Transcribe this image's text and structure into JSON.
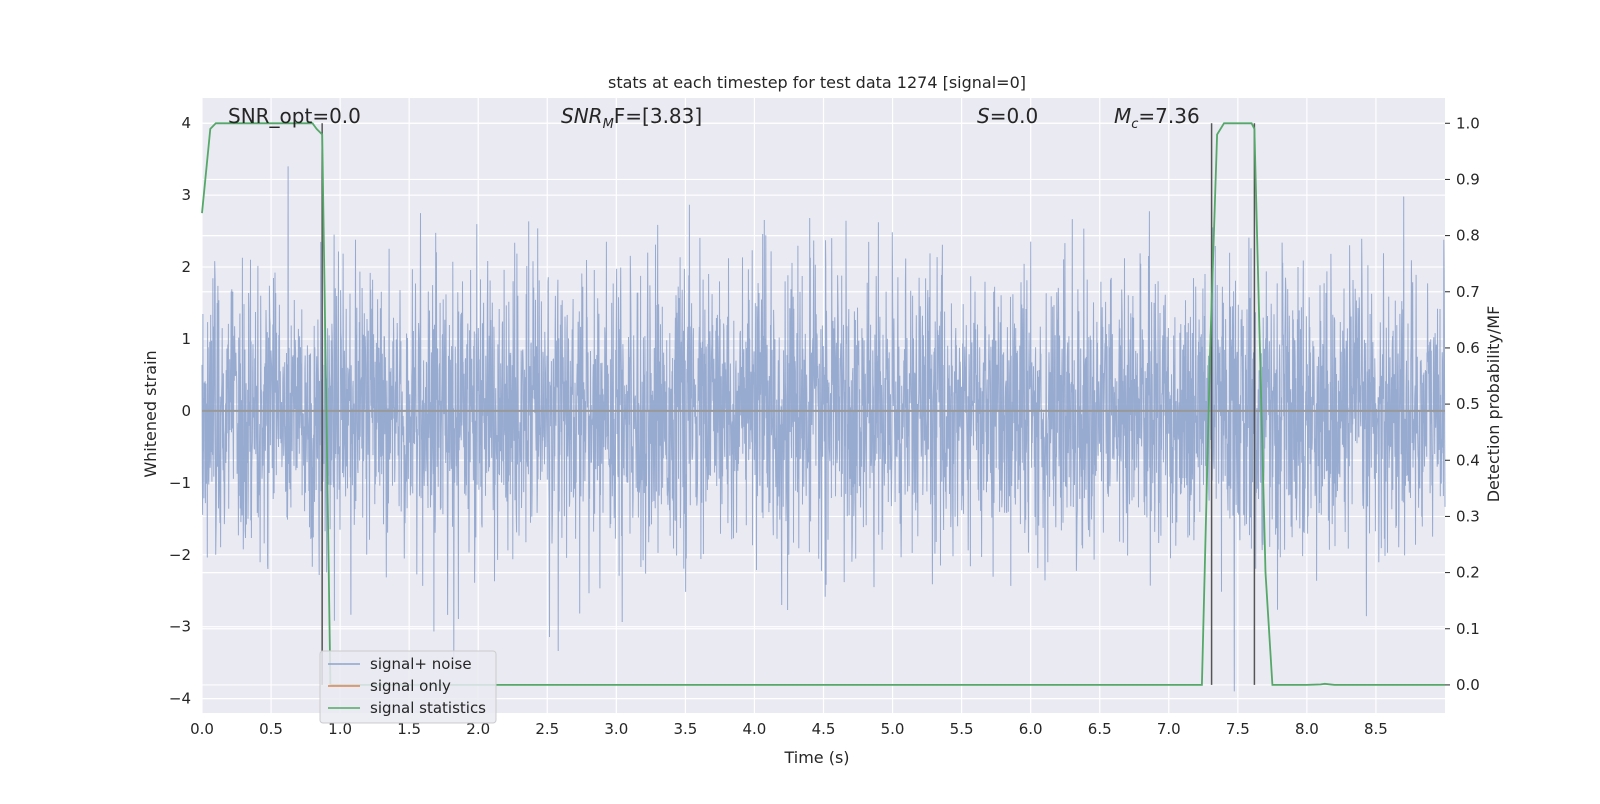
{
  "chart_data": {
    "type": "line",
    "title": "stats at each timestep for test data 1274 [signal=0]",
    "xlabel": "Time (s)",
    "ylabel": "Whitened strain",
    "ylabel_right": "Detection probability/MF",
    "xlim": [
      0.0,
      9.0
    ],
    "ylim": [
      -4.2,
      4.35
    ],
    "ylim_right": [
      -0.05,
      1.045
    ],
    "x_ticks": [
      "0.0",
      "0.5",
      "1.0",
      "1.5",
      "2.0",
      "2.5",
      "3.0",
      "3.5",
      "4.0",
      "4.5",
      "5.0",
      "5.5",
      "6.0",
      "6.5",
      "7.0",
      "7.5",
      "8.0",
      "8.5"
    ],
    "y_ticks": [
      "4",
      "3",
      "2",
      "1",
      "0",
      "−1",
      "−2",
      "−3",
      "−4"
    ],
    "y_right_ticks": [
      "1.0",
      "0.9",
      "0.8",
      "0.7",
      "0.6",
      "0.5",
      "0.4",
      "0.3",
      "0.2",
      "0.1",
      "0.0"
    ],
    "grid": true,
    "legend_position": "lower-left",
    "annotations": {
      "snr_opt": "SNR_opt=0.0",
      "snr_mf_main": "SNR",
      "snr_mf_sub": "M",
      "snr_mf_rest": "F=[3.83]",
      "s_main": "S",
      "s_rest": "=0.0",
      "mc_main": "M",
      "mc_sub": "c",
      "mc_rest": "=7.36"
    },
    "vertical_lines_x": [
      0.87,
      7.31,
      7.62
    ],
    "series": [
      {
        "name": "signal+ noise",
        "color": "#8ea3cc",
        "axis": "left",
        "description_values": {
          "mean": 0.0,
          "typical_abs_max": 2.6,
          "max": 4.0,
          "min": -3.9
        }
      },
      {
        "name": "signal only",
        "color": "#dd8452",
        "axis": "left",
        "x": [
          0.0,
          9.0
        ],
        "y": [
          0.0,
          0.0
        ]
      },
      {
        "name": "signal statistics",
        "color": "#55a868",
        "axis": "right",
        "x": [
          0.0,
          0.06,
          0.1,
          0.2,
          0.3,
          0.4,
          0.5,
          0.6,
          0.7,
          0.8,
          0.83,
          0.87,
          0.9,
          0.93,
          1.0,
          2.0,
          3.0,
          4.0,
          5.0,
          6.0,
          7.0,
          7.24,
          7.3,
          7.35,
          7.4,
          7.5,
          7.6,
          7.62,
          7.66,
          7.7,
          7.75,
          8.0,
          8.1,
          8.13,
          8.2,
          8.5,
          9.0
        ],
        "y": [
          0.84,
          0.99,
          1.0,
          1.0,
          1.0,
          1.0,
          1.0,
          1.0,
          1.0,
          1.0,
          0.99,
          0.98,
          0.5,
          0.0,
          0.0,
          0.0,
          0.0,
          0.0,
          0.0,
          0.0,
          0.0,
          0.0,
          0.6,
          0.98,
          1.0,
          1.0,
          1.0,
          0.99,
          0.6,
          0.2,
          0.0,
          0.0,
          0.001,
          0.002,
          0.0,
          0.0,
          0.0
        ]
      }
    ]
  }
}
